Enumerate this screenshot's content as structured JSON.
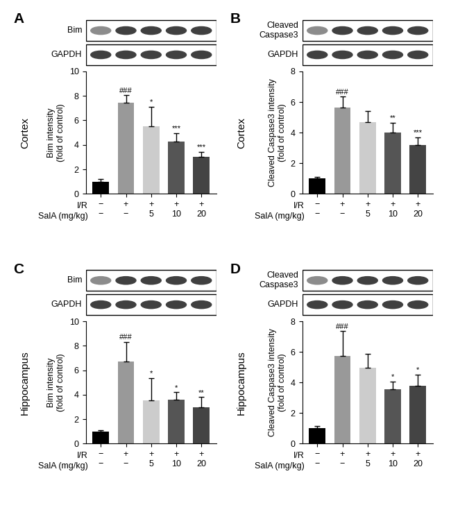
{
  "chart_data": [
    {
      "type": "bar",
      "panel": "A",
      "region": "Cortex",
      "ylabel": "Bim intensity\n(fold of control)",
      "blot_labels": [
        "Bim",
        "GAPDH"
      ],
      "categories": [
        "−\n−",
        "+\n−",
        "+\n5",
        "+\n10",
        "+\n20"
      ],
      "x_row_labels": [
        "I/R",
        "SalA (mg/kg)"
      ],
      "values": [
        1.0,
        7.45,
        5.5,
        4.25,
        3.0
      ],
      "errors": [
        0.2,
        0.6,
        1.6,
        0.7,
        0.4
      ],
      "significance": [
        null,
        "###",
        "*",
        "***",
        "***"
      ],
      "colors": [
        "#000000",
        "#999999",
        "#cccccc",
        "#555555",
        "#444444"
      ],
      "ylim": [
        0,
        10
      ],
      "yticks": [
        0,
        2,
        4,
        6,
        8,
        10
      ]
    },
    {
      "type": "bar",
      "panel": "B",
      "region": "Cortex",
      "ylabel": "Cleaved Caspase3 intensity\n(fold of control)",
      "blot_labels": [
        "Cleaved\nCaspase3",
        "GAPDH"
      ],
      "categories": [
        "−\n−",
        "+\n−",
        "+\n5",
        "+\n10",
        "+\n20"
      ],
      "x_row_labels": [
        "I/R",
        "SalA (mg/kg)"
      ],
      "values": [
        1.0,
        5.65,
        4.7,
        4.0,
        3.2
      ],
      "errors": [
        0.08,
        0.7,
        0.7,
        0.65,
        0.5
      ],
      "significance": [
        null,
        "###",
        null,
        "**",
        "***"
      ],
      "colors": [
        "#000000",
        "#999999",
        "#cccccc",
        "#555555",
        "#444444"
      ],
      "ylim": [
        0,
        8
      ],
      "yticks": [
        0,
        2,
        4,
        6,
        8
      ]
    },
    {
      "type": "bar",
      "panel": "C",
      "region": "Hippocampus",
      "ylabel": "Bim intensity\n(fold of control)",
      "blot_labels": [
        "Bim",
        "GAPDH"
      ],
      "categories": [
        "−\n−",
        "+\n−",
        "+\n5",
        "+\n10",
        "+\n20"
      ],
      "x_row_labels": [
        "I/R",
        "SalA (mg/kg)"
      ],
      "values": [
        1.0,
        6.7,
        3.55,
        3.6,
        3.0
      ],
      "errors": [
        0.08,
        1.6,
        1.8,
        0.6,
        0.8
      ],
      "significance": [
        null,
        "###",
        "*",
        "*",
        "**"
      ],
      "colors": [
        "#000000",
        "#999999",
        "#cccccc",
        "#555555",
        "#444444"
      ],
      "ylim": [
        0,
        10
      ],
      "yticks": [
        0,
        2,
        4,
        6,
        8,
        10
      ]
    },
    {
      "type": "bar",
      "panel": "D",
      "region": "Hippocampus",
      "ylabel": "Cleaved Caspase3 intensity\n(fold of control)",
      "blot_labels": [
        "Cleaved\nCaspase3",
        "GAPDH"
      ],
      "categories": [
        "−\n−",
        "+\n−",
        "+\n5",
        "+\n10",
        "+\n20"
      ],
      "x_row_labels": [
        "I/R",
        "SalA (mg/kg)"
      ],
      "values": [
        1.0,
        5.75,
        4.95,
        3.55,
        3.8
      ],
      "errors": [
        0.15,
        1.6,
        0.9,
        0.5,
        0.7
      ],
      "significance": [
        null,
        "###",
        null,
        "*",
        "*"
      ],
      "colors": [
        "#000000",
        "#999999",
        "#cccccc",
        "#555555",
        "#444444"
      ],
      "ylim": [
        0,
        8
      ],
      "yticks": [
        0,
        2,
        4,
        6,
        8
      ]
    }
  ]
}
